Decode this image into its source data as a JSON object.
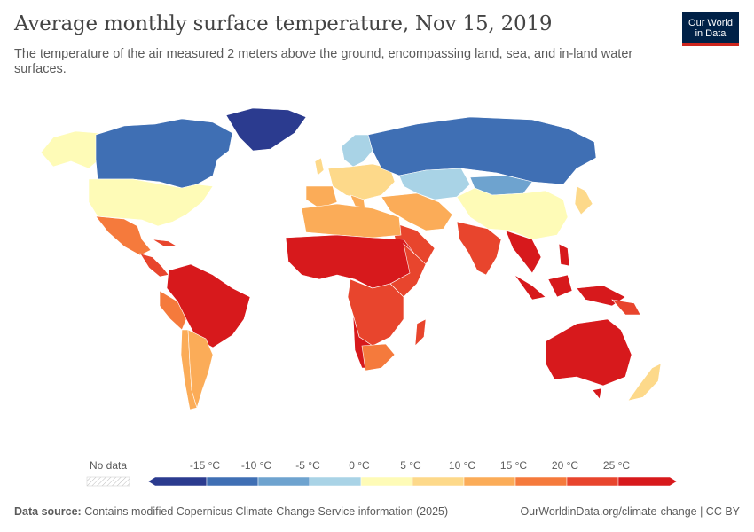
{
  "header": {
    "title": "Average monthly surface temperature, Nov 15, 2019",
    "subtitle": "The temperature of the air measured 2 meters above the ground, encompassing land, sea, and in-land water surfaces."
  },
  "logo": {
    "line1": "Our World",
    "line2": "in Data"
  },
  "legend": {
    "no_data_label": "No data",
    "bins": [
      {
        "label": "-15 °C",
        "color": "#2b3b8f"
      },
      {
        "label": "-10 °C",
        "color": "#3f6fb4"
      },
      {
        "label": "-5 °C",
        "color": "#6ea3cf"
      },
      {
        "label": "0 °C",
        "color": "#a9d3e6"
      },
      {
        "label": "5 °C",
        "color": "#fefbb7"
      },
      {
        "label": "10 °C",
        "color": "#fdd98a"
      },
      {
        "label": "15 °C",
        "color": "#fbac58"
      },
      {
        "label": "20 °C",
        "color": "#f57a3c"
      },
      {
        "label": "25 °C",
        "color": "#e8452d"
      },
      {
        "label": "",
        "color": "#d7191c"
      }
    ]
  },
  "footer": {
    "source_label": "Data source:",
    "source_text": "Contains modified Copernicus Climate Change Service information (2025)",
    "right_text": "OurWorldinData.org/climate-change | CC BY"
  }
}
